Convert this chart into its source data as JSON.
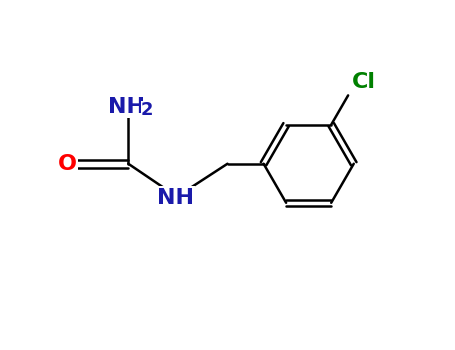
{
  "background_color": "#ffffff",
  "bond_color": "#000000",
  "atom_colors": {
    "O": "#ff0000",
    "N": "#1a1aaa",
    "Cl": "#008000",
    "C": "#000000"
  },
  "figsize": [
    4.55,
    3.5
  ],
  "dpi": 100,
  "bond_lw": 1.8,
  "font_size": 13
}
